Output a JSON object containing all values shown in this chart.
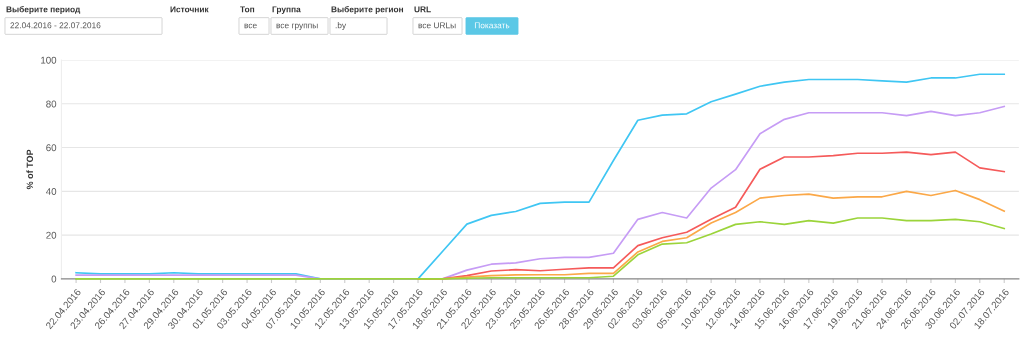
{
  "chart_data": [
    {
      "type": "other",
      "annotations": [
        "Выберите период",
        "22.04.2016 - 22.07.2016",
        "Источник",
        "Топ",
        "все",
        "Группа",
        "все группы",
        "Выберите регион",
        ".by",
        "URL",
        "все URLы",
        "Показать"
      ]
    },
    {
      "type": "line",
      "ylabel": "% of TOP",
      "ylim": [
        0,
        100
      ],
      "yticks": [
        0,
        20,
        40,
        60,
        80,
        100
      ],
      "grid": "y",
      "marker": "none",
      "line_style": "solid",
      "categories": [
        "22.04.2016",
        "23.04.2016",
        "26.04.2016",
        "27.04.2016",
        "29.04.2016",
        "30.04.2016",
        "01.05.2016",
        "03.05.2016",
        "04.05.2016",
        "07.05.2016",
        "10.05.2016",
        "12.05.2016",
        "13.05.2016",
        "15.05.2016",
        "17.05.2016",
        "18.05.2016",
        "21.05.2016",
        "22.05.2016",
        "23.05.2016",
        "25.05.2016",
        "26.05.2016",
        "28.05.2016",
        "29.05.2016",
        "02.06.2016",
        "03.06.2016",
        "05.06.2016",
        "10.06.2016",
        "12.06.2016",
        "14.06.2016",
        "15.06.2016",
        "16.06.2016",
        "17.06.2016",
        "19.06.2016",
        "21.06.2016",
        "24.06.2016",
        "26.06.2016",
        "30.06.2016",
        "02.07.2016",
        "18.07.2016"
      ],
      "series": [
        {
          "color": "#3fc6f3",
          "values": [
            2.8,
            2.3,
            2.3,
            2.3,
            2.8,
            2.3,
            2.3,
            2.3,
            2.3,
            2.3,
            0,
            0,
            0,
            0,
            0,
            12.5,
            25,
            29,
            30.8,
            34.5,
            35.1,
            35.1,
            54.1,
            72.5,
            74.8,
            75.4,
            80.9,
            84.4,
            88,
            89.9,
            91.1,
            91.1,
            91.1,
            90.5,
            89.9,
            91.8,
            91.8,
            93.5,
            93.5
          ]
        },
        {
          "color": "#c69cf5",
          "values": [
            1.7,
            1.7,
            1.7,
            1.7,
            1.7,
            1.7,
            1.7,
            1.7,
            1.7,
            1.7,
            0,
            0,
            0,
            0,
            0,
            0,
            4,
            6.7,
            7.3,
            9.2,
            9.8,
            9.8,
            11.7,
            27.2,
            30.3,
            27.8,
            41.5,
            49.9,
            66.3,
            72.9,
            75.9,
            75.9,
            75.9,
            75.9,
            74.6,
            76.5,
            74.6,
            75.9,
            78.8
          ]
        },
        {
          "color": "#f55a5a",
          "values": [
            null,
            null,
            null,
            null,
            null,
            null,
            null,
            null,
            null,
            null,
            null,
            null,
            null,
            null,
            0,
            0,
            1.5,
            3.6,
            4.2,
            3.7,
            4.4,
            5,
            5,
            15.2,
            18.8,
            21.3,
            27.2,
            32.7,
            50.1,
            55.7,
            55.7,
            56.3,
            57.4,
            57.4,
            57.9,
            56.8,
            57.9,
            50.7,
            49
          ]
        },
        {
          "color": "#fba848",
          "values": [
            null,
            null,
            null,
            null,
            null,
            null,
            null,
            null,
            null,
            null,
            null,
            null,
            null,
            null,
            0,
            0,
            0.8,
            1.5,
            1.8,
            1.9,
            1.9,
            2.5,
            2.5,
            12.3,
            17.1,
            18.8,
            25.5,
            30.3,
            36.9,
            38.1,
            38.7,
            36.9,
            37.5,
            37.5,
            40,
            38.1,
            40.4,
            36.2,
            30.9
          ]
        },
        {
          "color": "#9bd43a",
          "values": [
            0,
            0,
            0,
            0,
            0,
            0,
            0,
            0,
            0,
            0,
            0,
            0,
            0,
            0,
            0,
            0,
            0.3,
            0.5,
            0.5,
            0.5,
            0.5,
            0.5,
            1.2,
            11,
            15.9,
            16.5,
            20.5,
            24.9,
            26.1,
            24.9,
            26.6,
            25.5,
            27.8,
            27.8,
            26.6,
            26.6,
            27.2,
            26.1,
            23
          ]
        }
      ]
    }
  ]
}
